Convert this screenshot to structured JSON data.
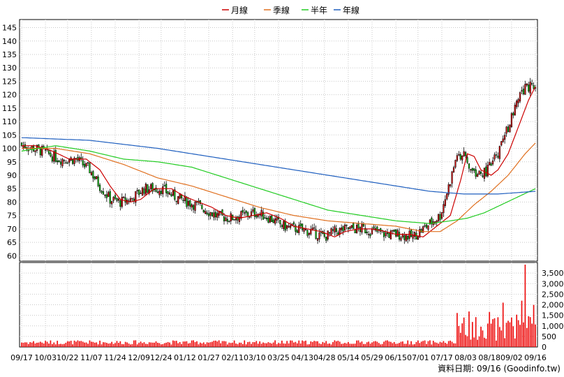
{
  "chart_data": {
    "type": "candlestick",
    "legend": [
      {
        "label": "月線",
        "color": "#cc0000"
      },
      {
        "label": "季線",
        "color": "#e07020"
      },
      {
        "label": "半年",
        "color": "#22cc22"
      },
      {
        "label": "年線",
        "color": "#1f5fbf"
      }
    ],
    "price_axis": {
      "ticks": [
        60,
        65,
        70,
        75,
        80,
        85,
        90,
        95,
        100,
        105,
        110,
        115,
        120,
        125,
        130,
        135,
        140,
        145
      ],
      "range": [
        58,
        148
      ]
    },
    "volume_axis": {
      "ticks": [
        "0",
        "500",
        "1,000",
        "1,500",
        "2,000",
        "2,500",
        "3,000",
        "3,500"
      ],
      "max": 4000
    },
    "x_labels": [
      "09/17",
      "10/03",
      "10/22",
      "11/07",
      "11/24",
      "12/09",
      "12/24",
      "01/12",
      "01/27",
      "02/11",
      "03/10",
      "03/25",
      "04/13",
      "04/28",
      "05/14",
      "05/29",
      "06/15",
      "07/01",
      "07/17",
      "08/03",
      "08/18",
      "09/02",
      "09/16"
    ],
    "ma_month": [
      [
        0,
        101
      ],
      [
        8,
        101
      ],
      [
        18,
        99
      ],
      [
        28,
        96
      ],
      [
        38,
        96
      ],
      [
        46,
        92
      ],
      [
        52,
        86
      ],
      [
        58,
        81
      ],
      [
        64,
        80
      ],
      [
        70,
        81
      ],
      [
        78,
        85
      ],
      [
        88,
        85
      ],
      [
        96,
        82
      ],
      [
        104,
        80
      ],
      [
        112,
        78
      ],
      [
        120,
        75
      ],
      [
        128,
        74
      ],
      [
        136,
        75
      ],
      [
        144,
        76
      ],
      [
        152,
        74
      ],
      [
        160,
        71
      ],
      [
        168,
        70
      ],
      [
        176,
        69
      ],
      [
        184,
        67
      ],
      [
        190,
        69
      ],
      [
        198,
        70
      ],
      [
        206,
        70
      ],
      [
        214,
        69
      ],
      [
        220,
        68
      ],
      [
        228,
        68
      ],
      [
        236,
        67
      ],
      [
        240,
        69
      ],
      [
        246,
        72
      ],
      [
        252,
        75
      ],
      [
        258,
        88
      ],
      [
        262,
        98
      ],
      [
        266,
        97
      ],
      [
        270,
        92
      ],
      [
        276,
        90
      ],
      [
        280,
        92
      ],
      [
        286,
        98
      ],
      [
        292,
        108
      ],
      [
        298,
        118
      ],
      [
        302,
        123
      ]
    ],
    "ma_quarter": [
      [
        0,
        100
      ],
      [
        20,
        100
      ],
      [
        40,
        98
      ],
      [
        60,
        94
      ],
      [
        80,
        89
      ],
      [
        100,
        86
      ],
      [
        120,
        82
      ],
      [
        140,
        78
      ],
      [
        160,
        75
      ],
      [
        180,
        73
      ],
      [
        200,
        72
      ],
      [
        220,
        71
      ],
      [
        236,
        69
      ],
      [
        246,
        69
      ],
      [
        256,
        73
      ],
      [
        266,
        79
      ],
      [
        276,
        84
      ],
      [
        286,
        90
      ],
      [
        296,
        98
      ],
      [
        302,
        102
      ]
    ],
    "ma_half": [
      [
        0,
        99
      ],
      [
        20,
        101
      ],
      [
        40,
        99
      ],
      [
        60,
        96
      ],
      [
        80,
        95
      ],
      [
        100,
        93
      ],
      [
        120,
        89
      ],
      [
        140,
        85
      ],
      [
        160,
        81
      ],
      [
        180,
        77
      ],
      [
        200,
        75
      ],
      [
        220,
        73
      ],
      [
        240,
        72
      ],
      [
        252,
        73
      ],
      [
        262,
        74
      ],
      [
        272,
        76
      ],
      [
        282,
        79
      ],
      [
        292,
        82
      ],
      [
        302,
        85
      ]
    ],
    "ma_year": [
      [
        0,
        104
      ],
      [
        40,
        103
      ],
      [
        80,
        100
      ],
      [
        120,
        96
      ],
      [
        160,
        92
      ],
      [
        190,
        89
      ],
      [
        220,
        86
      ],
      [
        240,
        84
      ],
      [
        260,
        83
      ],
      [
        280,
        83
      ],
      [
        302,
        84
      ]
    ],
    "footer": "資料日期: 09/16  (Goodinfo.tw)"
  }
}
